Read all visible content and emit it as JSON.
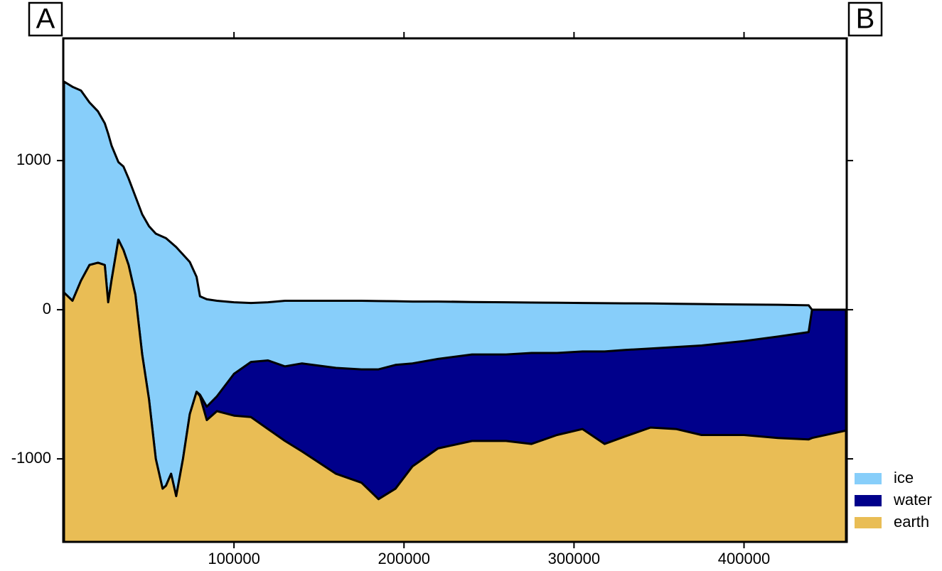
{
  "chart_data": {
    "type": "area",
    "annotations": [
      "A",
      "B"
    ],
    "x": [
      0,
      5000,
      10000,
      15000,
      20000,
      24000,
      26000,
      28000,
      32000,
      35000,
      38000,
      42000,
      46000,
      50000,
      54000,
      58000,
      60000,
      63000,
      66000,
      70000,
      74000,
      78000,
      80000,
      84000,
      90000,
      100000,
      110000,
      120000,
      130000,
      140000,
      160000,
      175000,
      185000,
      195000,
      205000,
      220000,
      240000,
      260000,
      275000,
      290000,
      305000,
      318000,
      330000,
      345000,
      360000,
      375000,
      400000,
      420000,
      438000,
      440000,
      460000
    ],
    "series": [
      {
        "name": "ice",
        "color": "#87cefa",
        "values": [
          1530,
          1495,
          1470,
          1390,
          1330,
          1250,
          1180,
          1100,
          990,
          960,
          880,
          760,
          640,
          560,
          510,
          490,
          480,
          450,
          420,
          370,
          320,
          220,
          90,
          70,
          60,
          50,
          45,
          50,
          60,
          60,
          60,
          60,
          58,
          57,
          55,
          55,
          52,
          50,
          48,
          47,
          45,
          44,
          43,
          42,
          40,
          38,
          35,
          33,
          30,
          0,
          0
        ]
      },
      {
        "name": "water",
        "color": "#00008b",
        "values": [
          115,
          60,
          195,
          300,
          315,
          300,
          50,
          200,
          470,
          400,
          300,
          100,
          -300,
          -600,
          -1000,
          -1200,
          -1180,
          -1100,
          -1250,
          -1000,
          -700,
          -550,
          -570,
          -650,
          -580,
          -430,
          -350,
          -340,
          -380,
          -360,
          -390,
          -400,
          -400,
          -370,
          -360,
          -330,
          -300,
          -300,
          -290,
          -290,
          -280,
          -280,
          -270,
          -260,
          -250,
          -240,
          -210,
          -180,
          -150,
          0,
          0
        ]
      },
      {
        "name": "earth",
        "color": "#e9bd55",
        "values": [
          115,
          60,
          195,
          300,
          315,
          300,
          50,
          200,
          470,
          400,
          300,
          100,
          -300,
          -600,
          -1000,
          -1200,
          -1180,
          -1100,
          -1250,
          -1000,
          -700,
          -550,
          -580,
          -740,
          -680,
          -710,
          -720,
          -800,
          -880,
          -950,
          -1100,
          -1160,
          -1270,
          -1200,
          -1050,
          -930,
          -880,
          -880,
          -900,
          -840,
          -800,
          -900,
          -850,
          -790,
          -800,
          -840,
          -840,
          -860,
          -870,
          -860,
          -810
        ]
      }
    ],
    "xlim": [
      0,
      460000
    ],
    "xticks": [
      100000,
      200000,
      300000,
      400000
    ],
    "ylim": [
      -1552,
      1815
    ],
    "yticks": [
      -1000,
      0,
      1000
    ],
    "legend": "bottom-right"
  }
}
